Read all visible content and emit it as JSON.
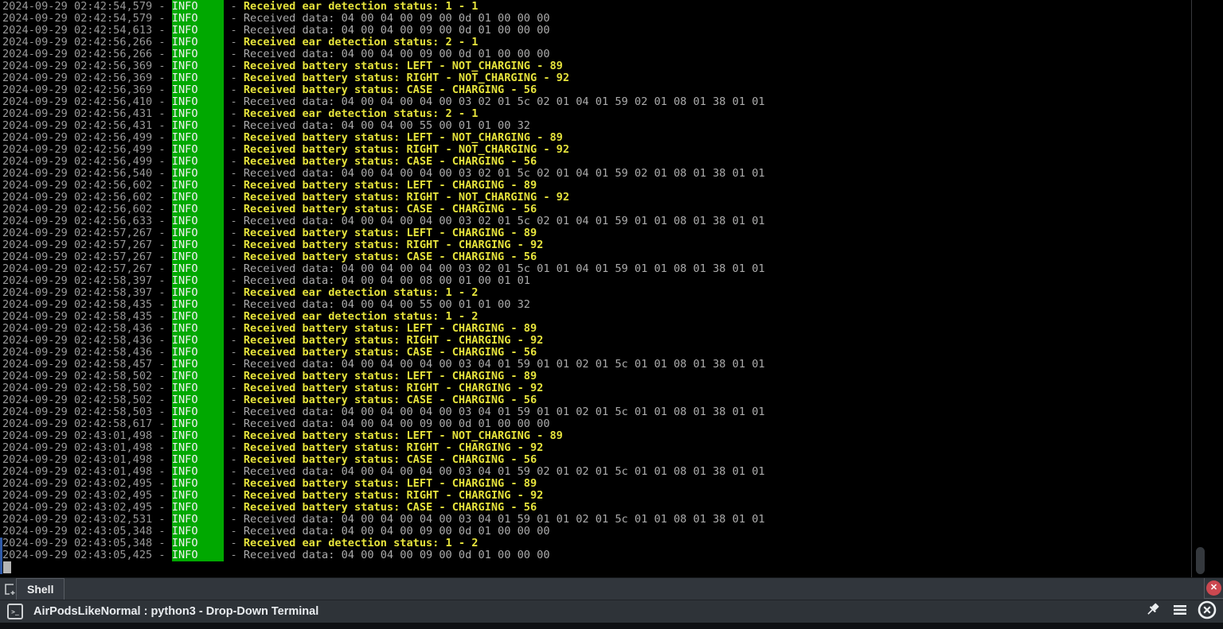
{
  "colors": {
    "timestamp": "#989898",
    "data_text": "#acacac",
    "status_text": "#e6e33c",
    "level_bg": "#00a800",
    "level_fg": "#f2f2f2",
    "close_red": "#cc4850"
  },
  "terminal": {
    "level": "INFO",
    "lines": [
      {
        "ts": "2024-09-29 02:42:54,579",
        "kind": "status",
        "msg": "Received ear detection status: 1 - 1"
      },
      {
        "ts": "2024-09-29 02:42:54,579",
        "kind": "data",
        "msg": "Received data: 04 00 04 00 09 00 0d 01 00 00 00"
      },
      {
        "ts": "2024-09-29 02:42:54,613",
        "kind": "data",
        "msg": "Received data: 04 00 04 00 09 00 0d 01 00 00 00"
      },
      {
        "ts": "2024-09-29 02:42:56,266",
        "kind": "status",
        "msg": "Received ear detection status: 2 - 1"
      },
      {
        "ts": "2024-09-29 02:42:56,266",
        "kind": "data",
        "msg": "Received data: 04 00 04 00 09 00 0d 01 00 00 00"
      },
      {
        "ts": "2024-09-29 02:42:56,369",
        "kind": "status",
        "msg": "Received battery status: LEFT - NOT_CHARGING - 89"
      },
      {
        "ts": "2024-09-29 02:42:56,369",
        "kind": "status",
        "msg": "Received battery status: RIGHT - NOT_CHARGING - 92"
      },
      {
        "ts": "2024-09-29 02:42:56,369",
        "kind": "status",
        "msg": "Received battery status: CASE - CHARGING - 56"
      },
      {
        "ts": "2024-09-29 02:42:56,410",
        "kind": "data",
        "msg": "Received data: 04 00 04 00 04 00 03 02 01 5c 02 01 04 01 59 02 01 08 01 38 01 01"
      },
      {
        "ts": "2024-09-29 02:42:56,431",
        "kind": "status",
        "msg": "Received ear detection status: 2 - 1"
      },
      {
        "ts": "2024-09-29 02:42:56,431",
        "kind": "data",
        "msg": "Received data: 04 00 04 00 55 00 01 01 00 32"
      },
      {
        "ts": "2024-09-29 02:42:56,499",
        "kind": "status",
        "msg": "Received battery status: LEFT - NOT_CHARGING - 89"
      },
      {
        "ts": "2024-09-29 02:42:56,499",
        "kind": "status",
        "msg": "Received battery status: RIGHT - NOT_CHARGING - 92"
      },
      {
        "ts": "2024-09-29 02:42:56,499",
        "kind": "status",
        "msg": "Received battery status: CASE - CHARGING - 56"
      },
      {
        "ts": "2024-09-29 02:42:56,540",
        "kind": "data",
        "msg": "Received data: 04 00 04 00 04 00 03 02 01 5c 02 01 04 01 59 02 01 08 01 38 01 01"
      },
      {
        "ts": "2024-09-29 02:42:56,602",
        "kind": "status",
        "msg": "Received battery status: LEFT - CHARGING - 89"
      },
      {
        "ts": "2024-09-29 02:42:56,602",
        "kind": "status",
        "msg": "Received battery status: RIGHT - NOT_CHARGING - 92"
      },
      {
        "ts": "2024-09-29 02:42:56,602",
        "kind": "status",
        "msg": "Received battery status: CASE - CHARGING - 56"
      },
      {
        "ts": "2024-09-29 02:42:56,633",
        "kind": "data",
        "msg": "Received data: 04 00 04 00 04 00 03 02 01 5c 02 01 04 01 59 01 01 08 01 38 01 01"
      },
      {
        "ts": "2024-09-29 02:42:57,267",
        "kind": "status",
        "msg": "Received battery status: LEFT - CHARGING - 89"
      },
      {
        "ts": "2024-09-29 02:42:57,267",
        "kind": "status",
        "msg": "Received battery status: RIGHT - CHARGING - 92"
      },
      {
        "ts": "2024-09-29 02:42:57,267",
        "kind": "status",
        "msg": "Received battery status: CASE - CHARGING - 56"
      },
      {
        "ts": "2024-09-29 02:42:57,267",
        "kind": "data",
        "msg": "Received data: 04 00 04 00 04 00 03 02 01 5c 01 01 04 01 59 01 01 08 01 38 01 01"
      },
      {
        "ts": "2024-09-29 02:42:58,397",
        "kind": "data",
        "msg": "Received data: 04 00 04 00 08 00 01 00 01 01"
      },
      {
        "ts": "2024-09-29 02:42:58,397",
        "kind": "status",
        "msg": "Received ear detection status: 1 - 2"
      },
      {
        "ts": "2024-09-29 02:42:58,435",
        "kind": "data",
        "msg": "Received data: 04 00 04 00 55 00 01 01 00 32"
      },
      {
        "ts": "2024-09-29 02:42:58,435",
        "kind": "status",
        "msg": "Received ear detection status: 1 - 2"
      },
      {
        "ts": "2024-09-29 02:42:58,436",
        "kind": "status",
        "msg": "Received battery status: LEFT - CHARGING - 89"
      },
      {
        "ts": "2024-09-29 02:42:58,436",
        "kind": "status",
        "msg": "Received battery status: RIGHT - CHARGING - 92"
      },
      {
        "ts": "2024-09-29 02:42:58,436",
        "kind": "status",
        "msg": "Received battery status: CASE - CHARGING - 56"
      },
      {
        "ts": "2024-09-29 02:42:58,457",
        "kind": "data",
        "msg": "Received data: 04 00 04 00 04 00 03 04 01 59 01 01 02 01 5c 01 01 08 01 38 01 01"
      },
      {
        "ts": "2024-09-29 02:42:58,502",
        "kind": "status",
        "msg": "Received battery status: LEFT - CHARGING - 89"
      },
      {
        "ts": "2024-09-29 02:42:58,502",
        "kind": "status",
        "msg": "Received battery status: RIGHT - CHARGING - 92"
      },
      {
        "ts": "2024-09-29 02:42:58,502",
        "kind": "status",
        "msg": "Received battery status: CASE - CHARGING - 56"
      },
      {
        "ts": "2024-09-29 02:42:58,503",
        "kind": "data",
        "msg": "Received data: 04 00 04 00 04 00 03 04 01 59 01 01 02 01 5c 01 01 08 01 38 01 01"
      },
      {
        "ts": "2024-09-29 02:42:58,617",
        "kind": "data",
        "msg": "Received data: 04 00 04 00 09 00 0d 01 00 00 00"
      },
      {
        "ts": "2024-09-29 02:43:01,498",
        "kind": "status",
        "msg": "Received battery status: LEFT - NOT_CHARGING - 89"
      },
      {
        "ts": "2024-09-29 02:43:01,498",
        "kind": "status",
        "msg": "Received battery status: RIGHT - CHARGING - 92"
      },
      {
        "ts": "2024-09-29 02:43:01,498",
        "kind": "status",
        "msg": "Received battery status: CASE - CHARGING - 56"
      },
      {
        "ts": "2024-09-29 02:43:01,498",
        "kind": "data",
        "msg": "Received data: 04 00 04 00 04 00 03 04 01 59 02 01 02 01 5c 01 01 08 01 38 01 01"
      },
      {
        "ts": "2024-09-29 02:43:02,495",
        "kind": "status",
        "msg": "Received battery status: LEFT - CHARGING - 89"
      },
      {
        "ts": "2024-09-29 02:43:02,495",
        "kind": "status",
        "msg": "Received battery status: RIGHT - CHARGING - 92"
      },
      {
        "ts": "2024-09-29 02:43:02,495",
        "kind": "status",
        "msg": "Received battery status: CASE - CHARGING - 56"
      },
      {
        "ts": "2024-09-29 02:43:02,531",
        "kind": "data",
        "msg": "Received data: 04 00 04 00 04 00 03 04 01 59 01 01 02 01 5c 01 01 08 01 38 01 01"
      },
      {
        "ts": "2024-09-29 02:43:05,348",
        "kind": "data",
        "msg": "Received data: 04 00 04 00 09 00 0d 01 00 00 00"
      },
      {
        "ts": "2024-09-29 02:43:05,348",
        "kind": "status",
        "msg": "Received ear detection status: 1 - 2"
      },
      {
        "ts": "2024-09-29 02:43:05,425",
        "kind": "data",
        "msg": "Received data: 04 00 04 00 09 00 0d 01 00 00 00"
      }
    ]
  },
  "tab_bar": {
    "tabs": [
      {
        "label": "Shell"
      }
    ],
    "close_glyph": "✕"
  },
  "title_bar": {
    "terminal_icon_glyph": ">_",
    "title": "AirPodsLikeNormal : python3 - Drop-Down Terminal"
  }
}
